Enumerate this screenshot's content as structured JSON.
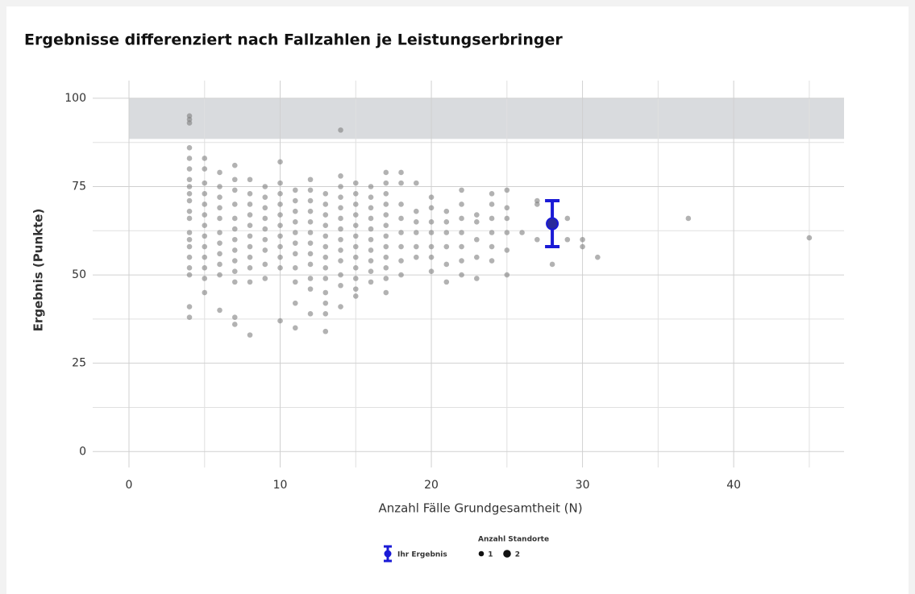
{
  "chart_data": {
    "type": "scatter",
    "title": "Ergebnisse differenziert nach Fallzahlen je Leistungserbringer",
    "x_label": "Anzahl Fälle Grundgesamtheit (N)",
    "y_label": "Ergebnis (Punkte)",
    "xlim": [
      -2.4,
      47.3
    ],
    "ylim": [
      -4.5,
      105
    ],
    "xticks": [
      0,
      10,
      20,
      30,
      40
    ],
    "yticks": [
      0,
      25,
      50,
      75,
      100
    ],
    "x_minor_grid": [
      5,
      15,
      25,
      35,
      45
    ],
    "y_minor_grid": [
      12.5,
      37.5,
      62.5,
      87.5
    ],
    "grid": true,
    "band": {
      "x": [
        0,
        47.3
      ],
      "y": [
        88.5,
        100
      ],
      "color": "#d9dbde"
    },
    "point_color": "#7f7f7f",
    "columns": [
      {
        "x": 4,
        "y": [
          95,
          94,
          93,
          86,
          83,
          80,
          77,
          75,
          73,
          71,
          68,
          66,
          62,
          60,
          58,
          55,
          52,
          50,
          41,
          38
        ]
      },
      {
        "x": 5,
        "y": [
          83,
          80,
          76,
          73,
          70,
          67,
          64,
          61,
          58,
          55,
          52,
          49,
          45
        ]
      },
      {
        "x": 6,
        "y": [
          79,
          75,
          72,
          69,
          66,
          62,
          59,
          56,
          53,
          50,
          40
        ]
      },
      {
        "x": 7,
        "y": [
          81,
          77,
          74,
          70,
          66,
          63,
          60,
          57,
          54,
          51,
          48,
          38,
          36
        ]
      },
      {
        "x": 8,
        "y": [
          77,
          73,
          70,
          67,
          64,
          61,
          58,
          55,
          52,
          48,
          33
        ]
      },
      {
        "x": 9,
        "y": [
          75,
          72,
          69,
          66,
          63,
          60,
          57,
          53,
          49
        ]
      },
      {
        "x": 10,
        "y": [
          82,
          76,
          73,
          70,
          67,
          64,
          61,
          58,
          55,
          52,
          37
        ]
      },
      {
        "x": 11,
        "y": [
          74,
          71,
          68,
          65,
          62,
          59,
          56,
          52,
          48,
          42,
          35
        ]
      },
      {
        "x": 12,
        "y": [
          77,
          74,
          71,
          68,
          65,
          62,
          59,
          56,
          53,
          49,
          46,
          39
        ]
      },
      {
        "x": 13,
        "y": [
          73,
          70,
          67,
          64,
          61,
          58,
          55,
          52,
          49,
          45,
          42,
          39,
          34
        ]
      },
      {
        "x": 14,
        "y": [
          91,
          78,
          75,
          72,
          69,
          66,
          63,
          60,
          57,
          54,
          50,
          47,
          41
        ]
      },
      {
        "x": 15,
        "y": [
          76,
          73,
          70,
          67,
          64,
          61,
          58,
          55,
          52,
          49,
          46,
          44
        ]
      },
      {
        "x": 16,
        "y": [
          75,
          72,
          69,
          66,
          63,
          60,
          57,
          54,
          51,
          48
        ]
      },
      {
        "x": 17,
        "y": [
          79,
          76,
          73,
          70,
          67,
          64,
          61,
          58,
          55,
          52,
          49,
          45
        ]
      },
      {
        "x": 18,
        "y": [
          79,
          76,
          70,
          66,
          62,
          58,
          54,
          50
        ]
      },
      {
        "x": 19,
        "y": [
          76,
          68,
          65,
          62,
          58,
          55
        ]
      },
      {
        "x": 20,
        "y": [
          72,
          69,
          65,
          62,
          58,
          55,
          51
        ]
      },
      {
        "x": 21,
        "y": [
          68,
          65,
          62,
          58,
          53,
          48
        ]
      },
      {
        "x": 22,
        "y": [
          74,
          70,
          66,
          62,
          58,
          54,
          50
        ]
      },
      {
        "x": 23,
        "y": [
          67,
          65,
          60,
          55,
          49
        ]
      },
      {
        "x": 24,
        "y": [
          73,
          70,
          66,
          62,
          58,
          54
        ]
      },
      {
        "x": 25,
        "y": [
          74,
          69,
          66,
          62,
          57,
          50
        ]
      },
      {
        "x": 26,
        "y": [
          62
        ]
      },
      {
        "x": 27,
        "y": [
          71,
          70,
          60
        ]
      },
      {
        "x": 28,
        "y": [
          53
        ]
      },
      {
        "x": 29,
        "y": [
          66,
          60
        ]
      },
      {
        "x": 30,
        "y": [
          60,
          58
        ]
      },
      {
        "x": 31,
        "y": [
          55
        ]
      },
      {
        "x": 37,
        "y": [
          66
        ]
      },
      {
        "x": 45,
        "y": [
          60.5
        ]
      }
    ],
    "highlight": {
      "name": "Ihr Ergebnis",
      "color": "#1a1ad6",
      "x": 28,
      "y": 64.5,
      "low": 58,
      "high": 71
    },
    "size_legend": {
      "title": "Anzahl Standorte",
      "values": [
        1,
        2
      ]
    }
  }
}
